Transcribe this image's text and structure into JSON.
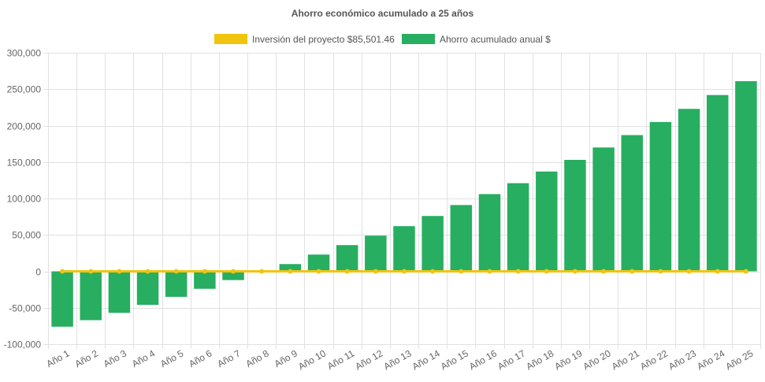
{
  "chart_data": {
    "type": "bar",
    "title": "Ahorro económico acumulado a 25 años",
    "xlabel": "",
    "ylabel": "",
    "ylim": [
      -100000,
      300000
    ],
    "y_ticks": [
      300000,
      250000,
      200000,
      150000,
      100000,
      50000,
      0,
      -50000,
      -100000
    ],
    "y_tick_labels": [
      "300,000",
      "250,000",
      "200,000",
      "150,000",
      "100,000",
      "50,000",
      "0",
      "-50,000",
      "-100,000"
    ],
    "grid": true,
    "legend_position": "top-center",
    "categories": [
      "Año 1",
      "Año 2",
      "Año 3",
      "Año 4",
      "Año 5",
      "Año 6",
      "Año 7",
      "Año 8",
      "Año 9",
      "Año 10",
      "Año 11",
      "Año 12",
      "Año 13",
      "Año 14",
      "Año 15",
      "Año 16",
      "Año 17",
      "Año 18",
      "Año 19",
      "Año 20",
      "Año 21",
      "Año 22",
      "Año 23",
      "Año 24",
      "Año 25"
    ],
    "series": [
      {
        "name": "Inversión del proyecto $85,501.46",
        "type": "line",
        "color": "#f1c40f",
        "values": [
          0,
          0,
          0,
          0,
          0,
          0,
          0,
          0,
          0,
          0,
          0,
          0,
          0,
          0,
          0,
          0,
          0,
          0,
          0,
          0,
          0,
          0,
          0,
          0,
          0
        ]
      },
      {
        "name": "Ahorro acumulado anual $",
        "type": "bar",
        "color": "#27ae60",
        "values": [
          -76000,
          -67000,
          -57000,
          -46000,
          -35000,
          -24000,
          -12000,
          0,
          10000,
          23000,
          36000,
          49000,
          62000,
          76000,
          91000,
          106000,
          121000,
          137000,
          153000,
          170000,
          187000,
          205000,
          223000,
          242000,
          261000
        ]
      }
    ]
  }
}
